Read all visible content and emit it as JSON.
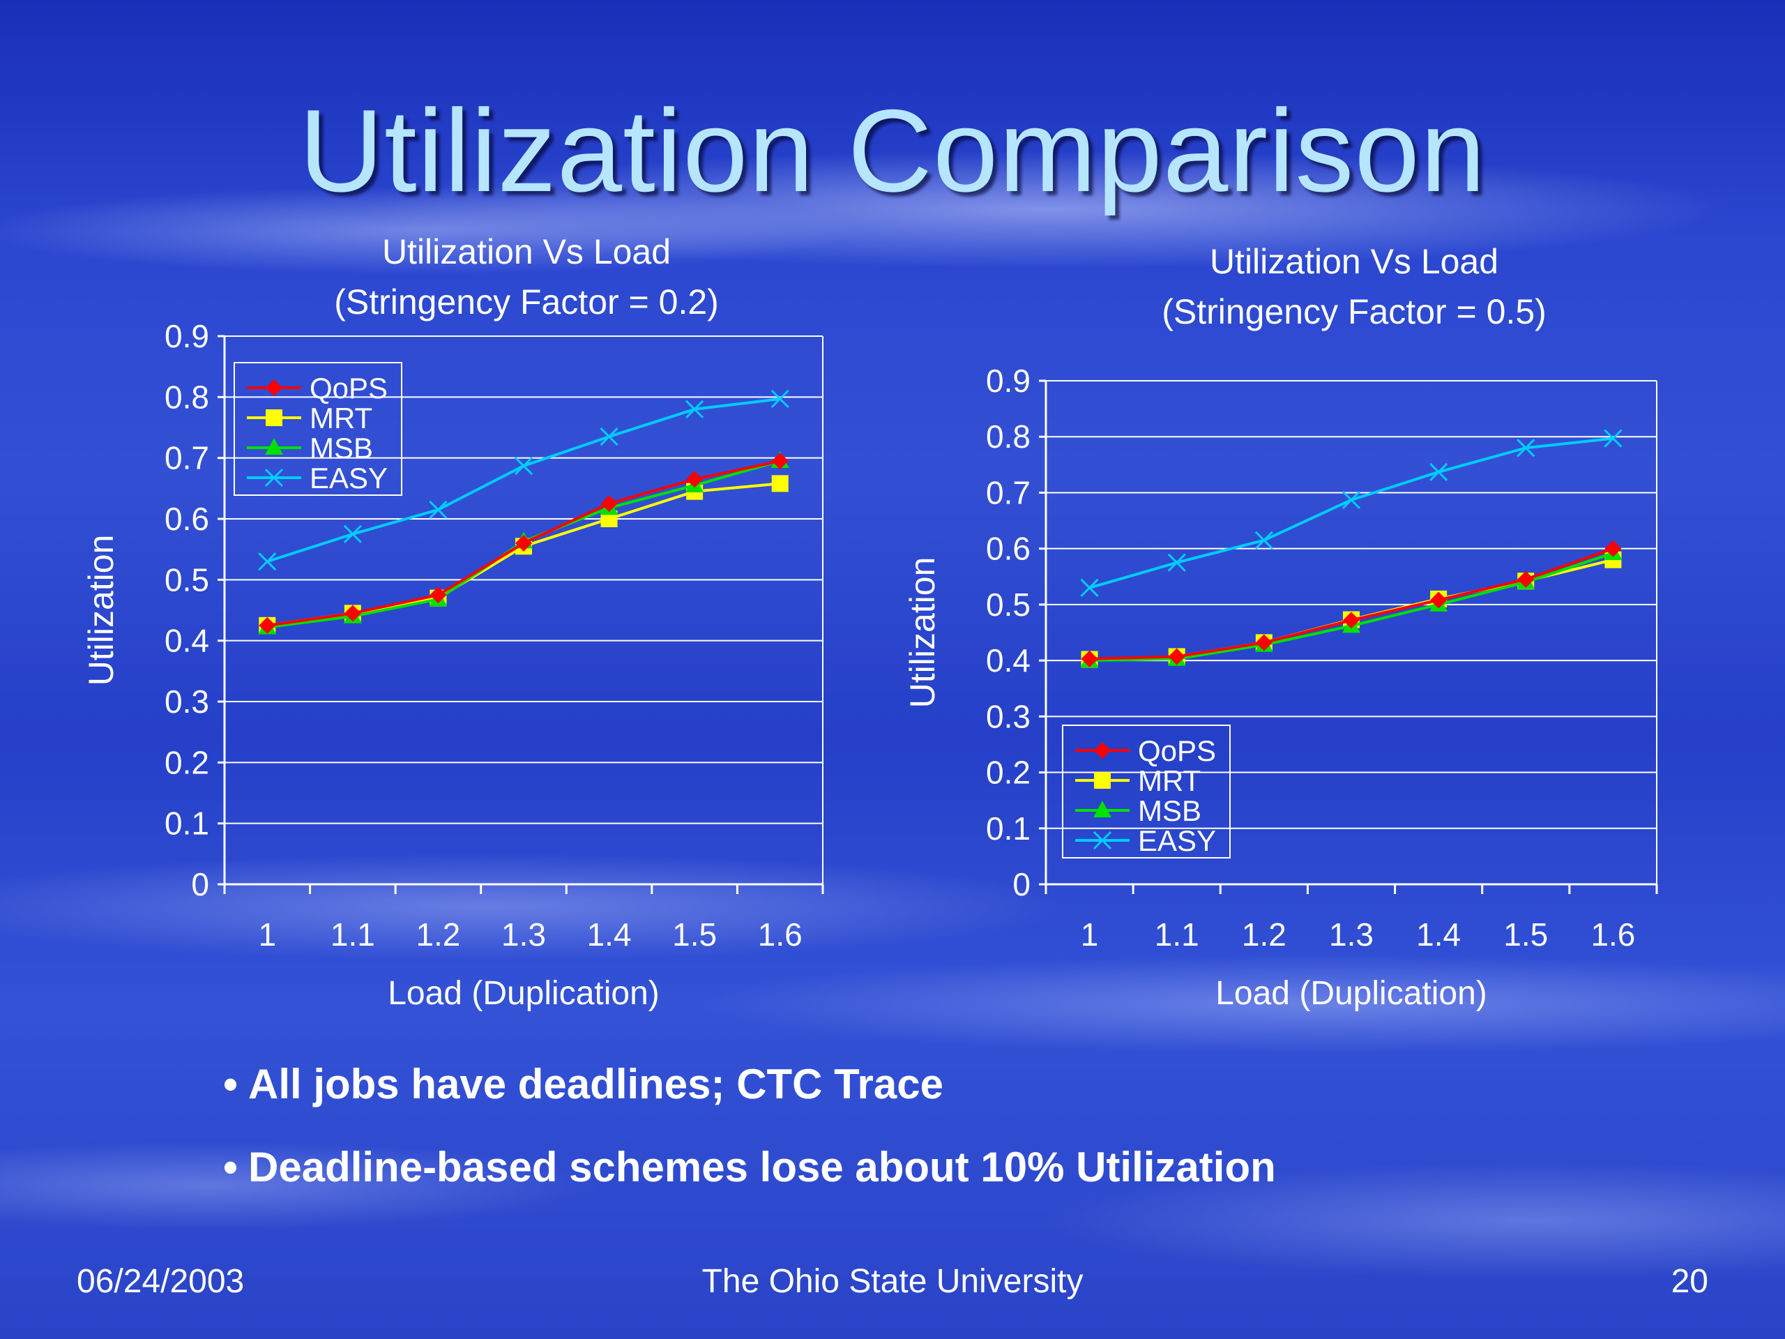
{
  "slide": {
    "title": "Utilization Comparison",
    "bullets": [
      "All jobs have deadlines; CTC Trace",
      "Deadline-based schemes lose about 10% Utilization"
    ],
    "footer": {
      "date": "06/24/2003",
      "center": "The Ohio State University",
      "page": "20"
    }
  },
  "colors": {
    "QoPS": "#ff0000",
    "MRT": "#ffff00",
    "MSB": "#00e000",
    "EASY": "#00ccff",
    "title": "#b6e6ff"
  },
  "chart_data": [
    {
      "type": "line",
      "title": "Utilization Vs Load",
      "subtitle": "(Stringency Factor = 0.2)",
      "xlabel": "Load (Duplication)",
      "ylabel": "Utilization",
      "categories": [
        "1",
        "1.1",
        "1.2",
        "1.3",
        "1.4",
        "1.5",
        "1.6"
      ],
      "ylim": [
        0,
        0.9
      ],
      "yticks": [
        "0",
        "0.1",
        "0.2",
        "0.3",
        "0.4",
        "0.5",
        "0.6",
        "0.7",
        "0.8",
        "0.9"
      ],
      "grid": true,
      "legend": "top-left",
      "series": [
        {
          "name": "QoPS",
          "marker": "diamond",
          "values": [
            0.425,
            0.445,
            0.475,
            0.56,
            0.625,
            0.665,
            0.695
          ]
        },
        {
          "name": "MRT",
          "marker": "square",
          "values": [
            0.425,
            0.445,
            0.47,
            0.555,
            0.6,
            0.645,
            0.658
          ]
        },
        {
          "name": "MSB",
          "marker": "triangle",
          "values": [
            0.422,
            0.44,
            0.468,
            0.563,
            0.618,
            0.655,
            0.695
          ]
        },
        {
          "name": "EASY",
          "marker": "x",
          "values": [
            0.53,
            0.575,
            0.615,
            0.687,
            0.735,
            0.78,
            0.797
          ]
        }
      ]
    },
    {
      "type": "line",
      "title": "Utilization Vs Load",
      "subtitle": "(Stringency Factor = 0.5)",
      "xlabel": "Load (Duplication)",
      "ylabel": "Utilization",
      "categories": [
        "1",
        "1.1",
        "1.2",
        "1.3",
        "1.4",
        "1.5",
        "1.6"
      ],
      "ylim": [
        0,
        0.9
      ],
      "yticks": [
        "0",
        "0.1",
        "0.2",
        "0.3",
        "0.4",
        "0.5",
        "0.6",
        "0.7",
        "0.8",
        "0.9"
      ],
      "grid": true,
      "legend": "bottom-left",
      "series": [
        {
          "name": "QoPS",
          "marker": "diamond",
          "values": [
            0.403,
            0.407,
            0.432,
            0.472,
            0.508,
            0.545,
            0.6
          ]
        },
        {
          "name": "MRT",
          "marker": "square",
          "values": [
            0.402,
            0.407,
            0.432,
            0.473,
            0.51,
            0.542,
            0.58
          ]
        },
        {
          "name": "MSB",
          "marker": "triangle",
          "values": [
            0.4,
            0.403,
            0.428,
            0.462,
            0.5,
            0.54,
            0.592
          ]
        },
        {
          "name": "EASY",
          "marker": "x",
          "values": [
            0.53,
            0.575,
            0.615,
            0.687,
            0.737,
            0.78,
            0.797
          ]
        }
      ]
    }
  ]
}
